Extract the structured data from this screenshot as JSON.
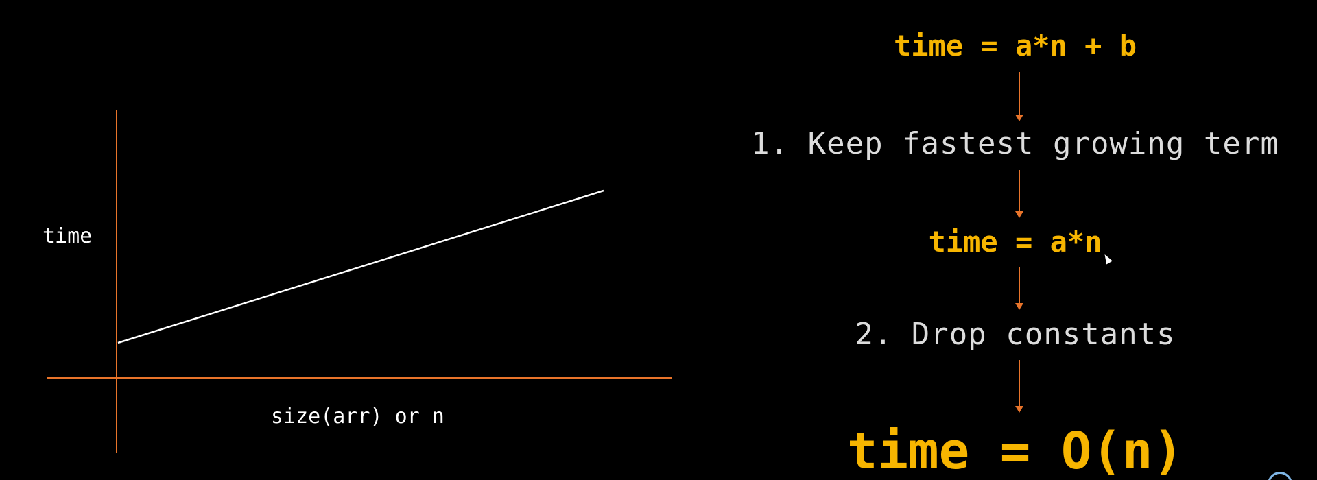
{
  "graph": {
    "y_label": "time",
    "x_label": "size(arr) or n",
    "axis_color": "#e8742a",
    "line_color": "#ffffff"
  },
  "flow": {
    "formula_1": "time = a*n + b",
    "step_1": "1. Keep fastest growing term",
    "formula_2": "time = a*n",
    "step_2": "2. Drop constants",
    "formula_3": "time = O(n)",
    "formula_color": "#f7b500",
    "step_color": "#dcdcdc",
    "arrow_color": "#e8742a"
  }
}
